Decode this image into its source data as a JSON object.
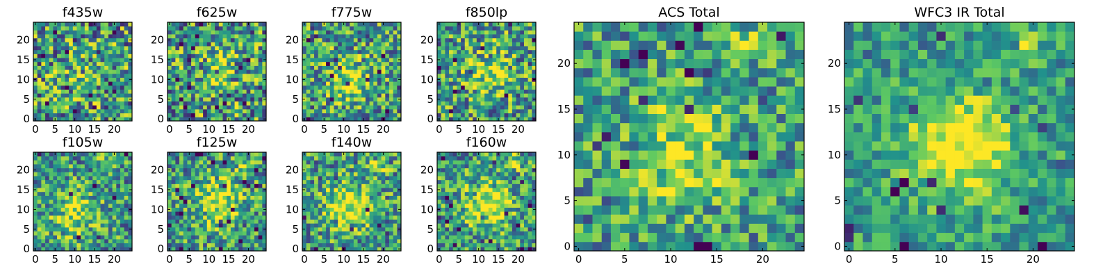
{
  "figure": {
    "colormap": "viridis",
    "colors": [
      "#440154",
      "#3b528b",
      "#21918c",
      "#5ec962",
      "#fde725"
    ]
  },
  "chart_data": [
    {
      "type": "heatmap",
      "title": "f435w",
      "grid": false,
      "xlim": [
        0,
        25
      ],
      "ylim": [
        0,
        25
      ],
      "xticks": [
        "0",
        "5",
        "10",
        "15",
        "20"
      ],
      "yticks": [
        "0",
        "5",
        "10",
        "15",
        "20"
      ],
      "seed": 11,
      "center": [
        12,
        10
      ],
      "center_amp": 0.1,
      "noise": 0.55,
      "secondary": null
    },
    {
      "type": "heatmap",
      "title": "f625w",
      "grid": false,
      "xlim": [
        0,
        25
      ],
      "ylim": [
        0,
        25
      ],
      "xticks": [
        "0",
        "5",
        "10",
        "15",
        "20"
      ],
      "yticks": [
        "0",
        "5",
        "10",
        "15",
        "20"
      ],
      "seed": 23,
      "center": [
        12,
        12
      ],
      "center_amp": 0.2,
      "noise": 0.55,
      "secondary": null
    },
    {
      "type": "heatmap",
      "title": "f775w",
      "grid": false,
      "xlim": [
        0,
        25
      ],
      "ylim": [
        0,
        25
      ],
      "xticks": [
        "0",
        "5",
        "10",
        "15",
        "20"
      ],
      "yticks": [
        "0",
        "5",
        "10",
        "15",
        "20"
      ],
      "seed": 37,
      "center": [
        11,
        10
      ],
      "center_amp": 0.35,
      "noise": 0.5,
      "secondary": null
    },
    {
      "type": "heatmap",
      "title": "f850lp",
      "grid": false,
      "xlim": [
        0,
        25
      ],
      "ylim": [
        0,
        25
      ],
      "xticks": [
        "0",
        "5",
        "10",
        "15",
        "20"
      ],
      "yticks": [
        "0",
        "5",
        "10",
        "15",
        "20"
      ],
      "seed": 41,
      "center": [
        13,
        11
      ],
      "center_amp": 0.3,
      "noise": 0.5,
      "secondary": [
        16,
        19
      ]
    },
    {
      "type": "heatmap",
      "title": "f105w",
      "grid": false,
      "xlim": [
        0,
        25
      ],
      "ylim": [
        0,
        25
      ],
      "xticks": [
        "0",
        "5",
        "10",
        "15",
        "20"
      ],
      "yticks": [
        "0",
        "5",
        "10",
        "15",
        "20"
      ],
      "seed": 53,
      "center": [
        10,
        9
      ],
      "center_amp": 0.35,
      "noise": 0.45,
      "secondary": [
        18,
        21
      ]
    },
    {
      "type": "heatmap",
      "title": "f125w",
      "grid": false,
      "xlim": [
        0,
        25
      ],
      "ylim": [
        0,
        25
      ],
      "xticks": [
        "0",
        "5",
        "10",
        "15",
        "20"
      ],
      "yticks": [
        "0",
        "5",
        "10",
        "15",
        "20"
      ],
      "seed": 67,
      "center": [
        12,
        12
      ],
      "center_amp": 0.45,
      "noise": 0.45,
      "secondary": [
        19,
        21
      ]
    },
    {
      "type": "heatmap",
      "title": "f140w",
      "grid": false,
      "xlim": [
        0,
        25
      ],
      "ylim": [
        0,
        25
      ],
      "xticks": [
        "0",
        "5",
        "10",
        "15",
        "20"
      ],
      "yticks": [
        "0",
        "5",
        "10",
        "15",
        "20"
      ],
      "seed": 79,
      "center": [
        11,
        11
      ],
      "center_amp": 0.45,
      "noise": 0.45,
      "secondary": [
        19,
        21
      ]
    },
    {
      "type": "heatmap",
      "title": "f160w",
      "grid": false,
      "xlim": [
        0,
        25
      ],
      "ylim": [
        0,
        25
      ],
      "xticks": [
        "0",
        "5",
        "10",
        "15",
        "20"
      ],
      "yticks": [
        "0",
        "5",
        "10",
        "15",
        "20"
      ],
      "seed": 83,
      "center": [
        12,
        11
      ],
      "center_amp": 0.45,
      "noise": 0.45,
      "secondary": [
        19,
        22
      ]
    },
    {
      "type": "heatmap",
      "title": "ACS Total",
      "grid": false,
      "xlim": [
        0,
        25
      ],
      "ylim": [
        0,
        25
      ],
      "xticks": [
        "0",
        "5",
        "10",
        "15",
        "20"
      ],
      "yticks": [
        "0",
        "5",
        "10",
        "15",
        "20"
      ],
      "seed": 97,
      "center": [
        11,
        10
      ],
      "center_amp": 0.35,
      "noise": 0.4,
      "secondary": [
        18,
        22
      ]
    },
    {
      "type": "heatmap",
      "title": "WFC3 IR Total",
      "grid": false,
      "xlim": [
        0,
        25
      ],
      "ylim": [
        0,
        25
      ],
      "xticks": [
        "0",
        "5",
        "10",
        "15",
        "20"
      ],
      "yticks": [
        "0",
        "5",
        "10",
        "15",
        "20"
      ],
      "seed": 101,
      "center": [
        12,
        11
      ],
      "center_amp": 0.55,
      "noise": 0.3,
      "secondary": [
        19,
        22
      ]
    }
  ]
}
